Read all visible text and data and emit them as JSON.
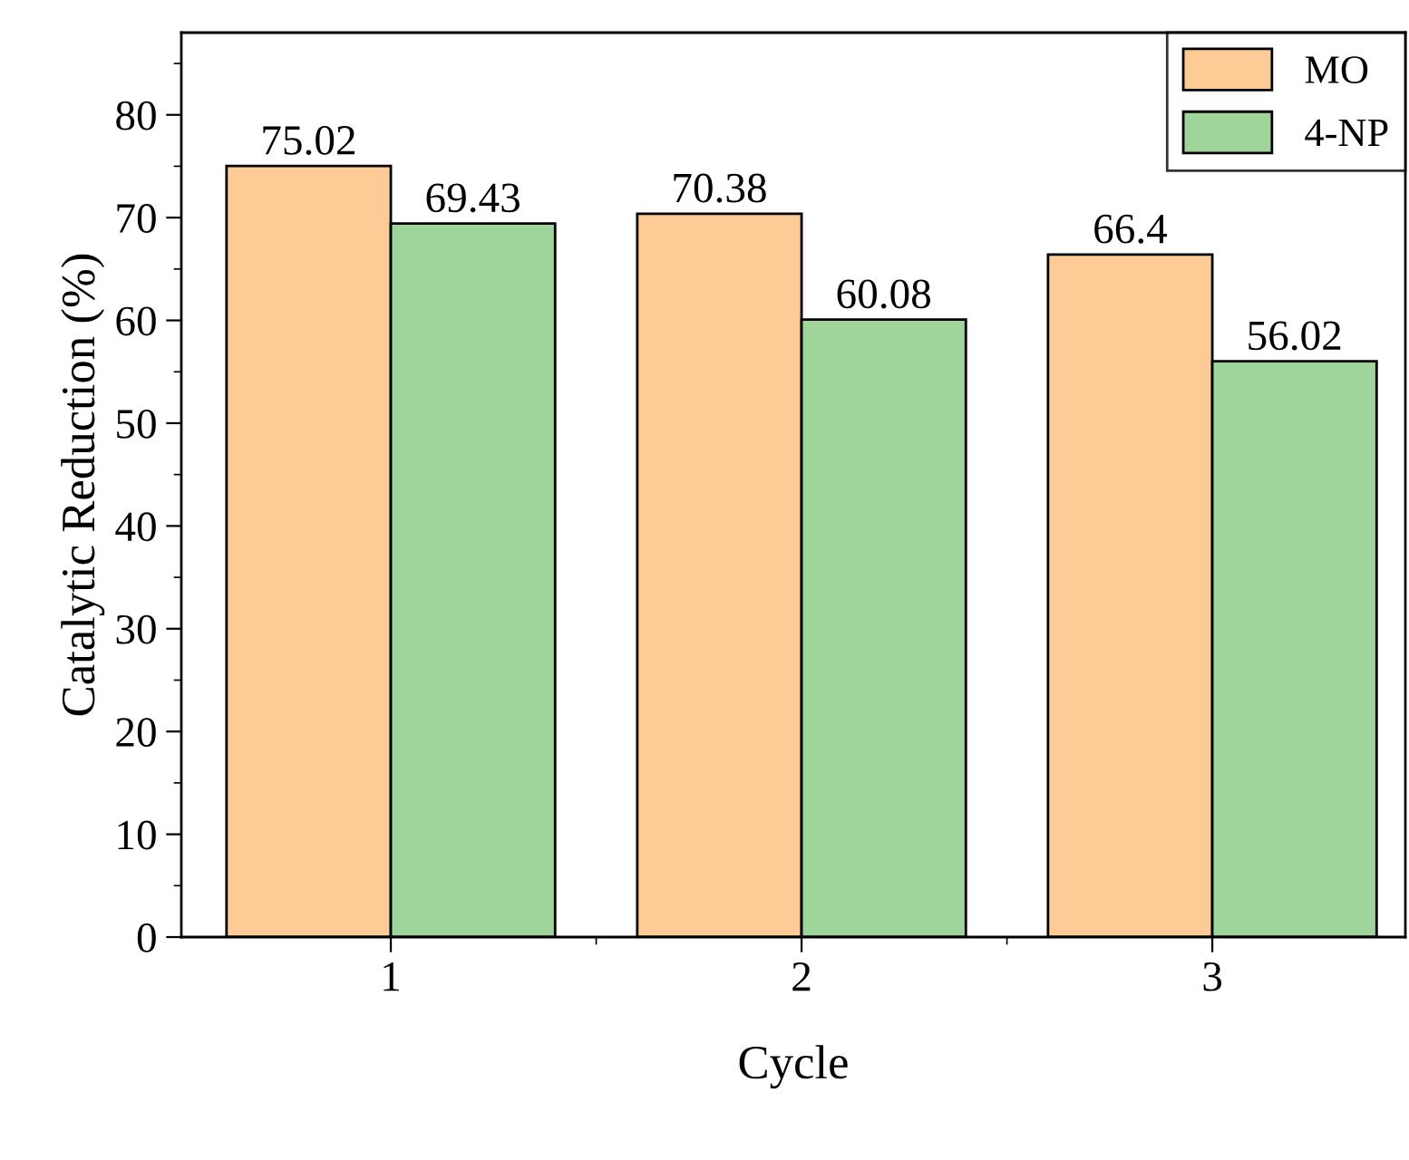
{
  "chart_data": {
    "type": "bar",
    "xlabel": "Cycle",
    "ylabel": "Catalytic Reduction (%)",
    "categories": [
      "1",
      "2",
      "3"
    ],
    "series": [
      {
        "name": "MO",
        "color": "#fdcc96",
        "values": [
          75.02,
          70.38,
          66.4
        ]
      },
      {
        "name": "4-NP",
        "color": "#9fd59a",
        "values": [
          69.43,
          60.08,
          56.02
        ]
      }
    ],
    "ylim": [
      0,
      88
    ],
    "yticks": [
      0,
      10,
      20,
      30,
      40,
      50,
      60,
      70,
      80
    ],
    "data_labels": true,
    "legend": "top right",
    "grid": false
  }
}
